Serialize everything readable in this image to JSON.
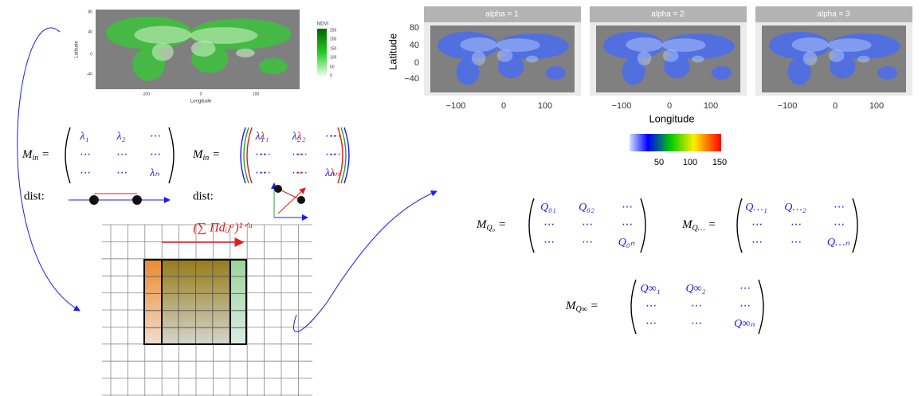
{
  "ndvi_map": {
    "y_label": "Latitude",
    "x_label": "Longitude",
    "yticks": [
      "80",
      "40",
      "0",
      "-40"
    ],
    "xticks": [
      "-100",
      "0",
      "100"
    ],
    "legend_title": "NDVI",
    "legend_ticks": [
      "250",
      "200",
      "150",
      "100",
      "50",
      "0"
    ]
  },
  "alpha_maps": {
    "panels": [
      "alpha = 1",
      "alpha = 2",
      "alpha = 3"
    ],
    "y_label": "Latitude",
    "x_label": "Longitude",
    "yticks": [
      "80",
      "40",
      "0",
      "−40"
    ],
    "xticks": [
      "−100",
      "0",
      "100"
    ],
    "colorbar_ticks": [
      "50",
      "100",
      "150"
    ]
  },
  "left_matrices": [
    {
      "label": {
        "base": "M",
        "sub": "in"
      },
      "rows": [
        [
          "λ₁",
          "λ₂",
          "⋯"
        ],
        [
          "⋯",
          "⋯",
          "⋯"
        ],
        [
          "⋯",
          "⋯",
          "λₙ"
        ]
      ]
    },
    {
      "label": {
        "base": "M",
        "sub": "in"
      },
      "rows": [
        [
          "λ₁",
          "λ₂",
          "⋯"
        ],
        [
          "⋯",
          "⋯",
          "⋯"
        ],
        [
          "⋯",
          "⋯",
          "λₙ"
        ]
      ]
    }
  ],
  "dist_labels": [
    "dist:",
    "dist:"
  ],
  "aggregation_formula": "(∑ Πdᵢⱼᵅ)¹ᐟᵅ",
  "q_matrices": [
    {
      "label": {
        "base": "M",
        "sub": "Q₀"
      },
      "rows": [
        [
          "Q₀₁",
          "Q₀₂",
          "⋯"
        ],
        [
          "⋯",
          "⋯",
          "⋯"
        ],
        [
          "⋯",
          "⋯",
          "Q₀ₙ"
        ]
      ]
    },
    {
      "label": {
        "base": "M",
        "sub": "Q…"
      },
      "rows": [
        [
          "Q…₁",
          "Q…₂",
          "⋯"
        ],
        [
          "⋯",
          "⋯",
          "⋯"
        ],
        [
          "⋯",
          "⋯",
          "Q…ₙ"
        ]
      ]
    },
    {
      "label": {
        "base": "M",
        "sub": "Q∞"
      },
      "rows": [
        [
          "Q∞₁",
          "Q∞₂",
          "⋯"
        ],
        [
          "⋯",
          "⋯",
          "⋯"
        ],
        [
          "⋯",
          "⋯",
          "Q∞ₙ"
        ]
      ]
    }
  ]
}
